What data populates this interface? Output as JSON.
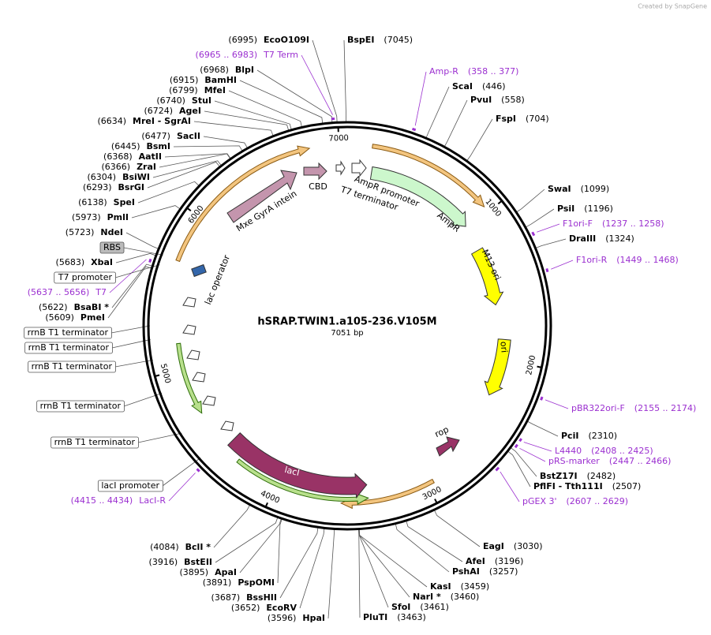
{
  "credit": "Created by SnapGene",
  "plasmid": {
    "name": "hSRAP.TWIN1.a105-236.V105M",
    "length": "7051 bp"
  },
  "ring_ticks": [
    1000,
    2000,
    3000,
    4000,
    5000,
    6000,
    7000
  ],
  "sites": [
    {
      "name": "EcoO109I",
      "position": "(6995)"
    },
    {
      "name": "BspEI",
      "position": "(7045)"
    },
    {
      "name": "BlpI",
      "position": "(6968)"
    },
    {
      "name": "BamHI",
      "position": "(6915)"
    },
    {
      "name": "MfeI",
      "position": "(6799)"
    },
    {
      "name": "StuI",
      "position": "(6740)"
    },
    {
      "name": "AgeI",
      "position": "(6724)"
    },
    {
      "name": "MreI  - SgrAI",
      "position": "(6634)"
    },
    {
      "name": "SacII",
      "position": "(6477)"
    },
    {
      "name": "BsmI",
      "position": "(6445)"
    },
    {
      "name": "AatII",
      "position": "(6368)"
    },
    {
      "name": "ZraI",
      "position": "(6366)"
    },
    {
      "name": "BsiWI",
      "position": "(6304)"
    },
    {
      "name": "BsrGI",
      "position": "(6293)"
    },
    {
      "name": "SpeI",
      "position": "(6138)"
    },
    {
      "name": "PmlI",
      "position": "(5973)"
    },
    {
      "name": "NdeI",
      "position": "(5723)"
    },
    {
      "name": "XbaI",
      "position": "(5683)"
    },
    {
      "name": "BsaBI *",
      "position": "(5622)"
    },
    {
      "name": "PmeI",
      "position": "(5609)"
    },
    {
      "name": "BclI *",
      "position": "(4084)"
    },
    {
      "name": "BstEII",
      "position": "(3916)"
    },
    {
      "name": "ApaI",
      "position": "(3895)"
    },
    {
      "name": "PspOMI",
      "position": "(3891)"
    },
    {
      "name": "BssHII",
      "position": "(3687)"
    },
    {
      "name": "EcoRV",
      "position": "(3652)"
    },
    {
      "name": "HpaI",
      "position": "(3596)"
    },
    {
      "name": "ScaI",
      "position": "(446)"
    },
    {
      "name": "PvuI",
      "position": "(558)"
    },
    {
      "name": "FspI",
      "position": "(704)"
    },
    {
      "name": "SwaI",
      "position": "(1099)"
    },
    {
      "name": "PsiI",
      "position": "(1196)"
    },
    {
      "name": "DraIII",
      "position": "(1324)"
    },
    {
      "name": "PciI",
      "position": "(2310)"
    },
    {
      "name": "BstZ17I",
      "position": "(2482)"
    },
    {
      "name": "PflFI  - Tth111I",
      "position": "(2507)"
    },
    {
      "name": "EagI",
      "position": "(3030)"
    },
    {
      "name": "AfeI",
      "position": "(3196)"
    },
    {
      "name": "PshAI",
      "position": "(3257)"
    },
    {
      "name": "KasI",
      "position": "(3459)"
    },
    {
      "name": "NarI *",
      "position": "(3460)"
    },
    {
      "name": "SfoI",
      "position": "(3461)"
    },
    {
      "name": "PluTI",
      "position": "(3463)"
    }
  ],
  "primers": [
    {
      "name": "T7 Term",
      "range": "(6965 .. 6983)"
    },
    {
      "name": "Amp-R",
      "range": "(358 .. 377)"
    },
    {
      "name": "F1ori-F",
      "range": "(1237 .. 1258)"
    },
    {
      "name": "F1ori-R",
      "range": "(1449 .. 1468)"
    },
    {
      "name": "T7",
      "range": "(5637 .. 5656)"
    },
    {
      "name": "pBR322ori-F",
      "range": "(2155 .. 2174)"
    },
    {
      "name": "L4440",
      "range": "(2408 .. 2425)"
    },
    {
      "name": "pRS-marker",
      "range": "(2447 .. 2466)"
    },
    {
      "name": "pGEX 3'",
      "range": "(2607 .. 2629)"
    },
    {
      "name": "LacI-R",
      "range": "(4415 .. 4434)"
    }
  ],
  "callouts": [
    "RBS",
    "T7 promoter",
    "rrnB T1 terminator",
    "rrnB T1 terminator",
    "rrnB T1 terminator",
    "rrnB T1 terminator",
    "rrnB T1 terminator",
    "lacI promoter"
  ],
  "features": [
    "Mxe GyrA intein",
    "CBD",
    "T7 terminator",
    "AmpR promoter",
    "AmpR",
    "M13 ori",
    "ori",
    "rop",
    "lacI",
    "lac operator"
  ]
}
